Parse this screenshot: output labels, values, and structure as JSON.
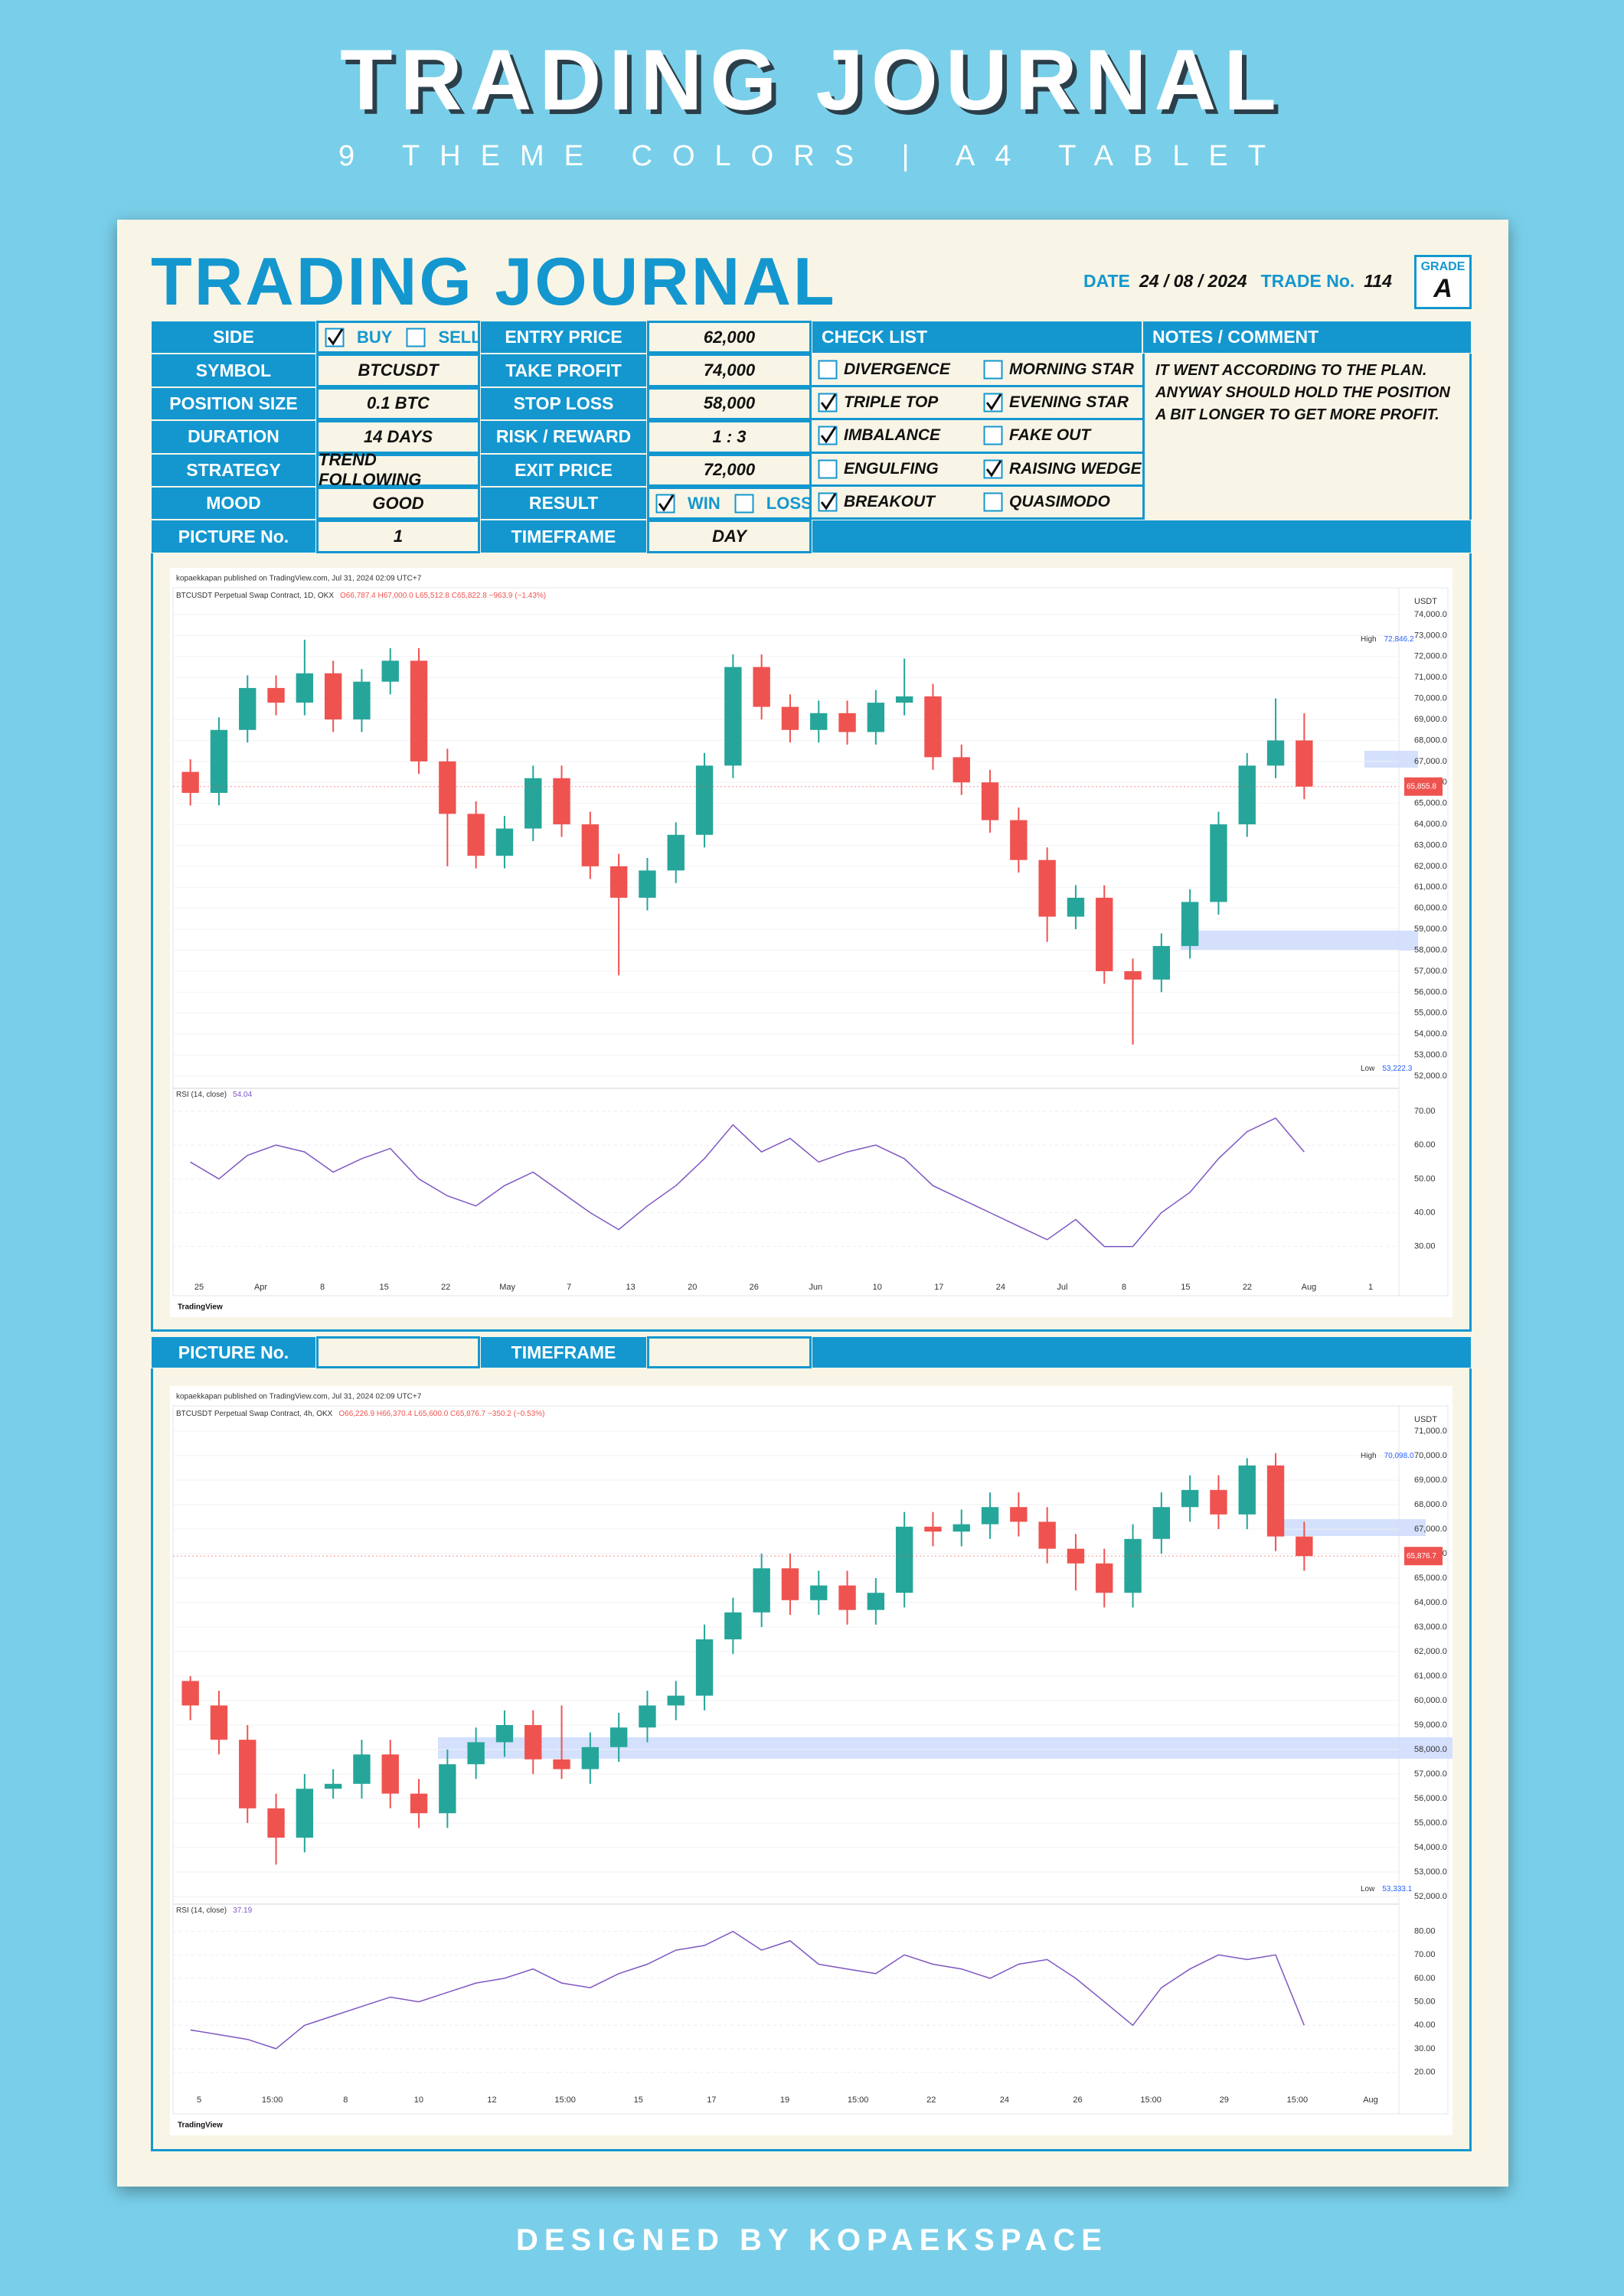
{
  "cover": {
    "title": "TRADING JOURNAL",
    "subtitle": "9 THEME COLORS | A4 TABLET",
    "footer": "DESIGNED BY KOPAEKSPACE"
  },
  "journal": {
    "title": "TRADING JOURNAL",
    "date_label": "DATE",
    "date": "24 / 08 / 2024",
    "trade_label": "TRADE No.",
    "trade_no": "114",
    "grade_label": "GRADE",
    "grade": "A",
    "left": [
      {
        "label": "SIDE",
        "options": [
          {
            "label": "BUY",
            "checked": true
          },
          {
            "label": "SELL",
            "checked": false
          }
        ]
      },
      {
        "label": "SYMBOL",
        "value": "BTCUSDT"
      },
      {
        "label": "POSITION SIZE",
        "value": "0.1 BTC"
      },
      {
        "label": "DURATION",
        "value": "14 DAYS"
      },
      {
        "label": "STRATEGY",
        "value": "TREND FOLLOWING"
      },
      {
        "label": "MOOD",
        "value": "GOOD"
      },
      {
        "label": "PICTURE No.",
        "value": "1"
      }
    ],
    "middle": [
      {
        "label": "ENTRY PRICE",
        "value": "62,000"
      },
      {
        "label": "TAKE PROFIT",
        "value": "74,000"
      },
      {
        "label": "STOP LOSS",
        "value": "58,000"
      },
      {
        "label": "RISK / REWARD",
        "value": "1 : 3"
      },
      {
        "label": "EXIT PRICE",
        "value": "72,000"
      },
      {
        "label": "RESULT",
        "options": [
          {
            "label": "WIN",
            "checked": true
          },
          {
            "label": "LOSS",
            "checked": false
          }
        ]
      },
      {
        "label": "TIMEFRAME",
        "value": "DAY"
      }
    ],
    "checklist": {
      "title": "CHECK LIST",
      "items": [
        {
          "label": "DIVERGENCE",
          "checked": false
        },
        {
          "label": "MORNING STAR",
          "checked": false
        },
        {
          "label": "TRIPLE TOP",
          "checked": true
        },
        {
          "label": "EVENING STAR",
          "checked": true
        },
        {
          "label": "IMBALANCE",
          "checked": true
        },
        {
          "label": "FAKE OUT",
          "checked": false
        },
        {
          "label": "ENGULFING",
          "checked": false
        },
        {
          "label": "RAISING WEDGE",
          "checked": true
        },
        {
          "label": "BREAKOUT",
          "checked": true
        },
        {
          "label": "QUASIMODO",
          "checked": false
        }
      ]
    },
    "notes": {
      "title": "NOTES / COMMENT",
      "text": "IT WENT ACCORDING TO THE PLAN. ANYWAY SHOULD HOLD THE POSITION A BIT LONGER TO GET MORE PROFIT."
    },
    "second": {
      "picture_label": "PICTURE No.",
      "timeframe_label": "TIMEFRAME"
    }
  },
  "charts": [
    {
      "type": "candlestick",
      "published": "kopaekkapan published on TradingView.com, Jul 31, 2024 02:09 UTC+7",
      "symbol": "BTCUSDT Perpetual Swap Contract, 1D, OKX",
      "ohlc": "O66,787.4 H67,000.0 L65,512.8 C65,822.8 −963.9 (−1.43%)",
      "unit": "USDT",
      "high_label": "High",
      "high": "72,846.2",
      "low_label": "Low",
      "low": "53,222.3",
      "last": "65,855.8",
      "footer": "TradingView",
      "ylim": [
        52000,
        74000
      ],
      "yticks": [
        {
          "value": 74000,
          "label": "74,000.0"
        },
        {
          "value": 73000,
          "label": "73,000.0"
        },
        {
          "value": 72000,
          "label": "72,000.0"
        },
        {
          "value": 71000,
          "label": "71,000.0"
        },
        {
          "value": 70000,
          "label": "70,000.0"
        },
        {
          "value": 69000,
          "label": "69,000.0"
        },
        {
          "value": 68000,
          "label": "68,000.0"
        },
        {
          "value": 67000,
          "label": "67,000.0"
        },
        {
          "value": 66000,
          "label": "66,000.0"
        },
        {
          "value": 65000,
          "label": "65,000.0"
        },
        {
          "value": 64000,
          "label": "64,000.0"
        },
        {
          "value": 63000,
          "label": "63,000.0"
        },
        {
          "value": 62000,
          "label": "62,000.0"
        },
        {
          "value": 61000,
          "label": "61,000.0"
        },
        {
          "value": 60000,
          "label": "60,000.0"
        },
        {
          "value": 59000,
          "label": "59,000.0"
        },
        {
          "value": 58000,
          "label": "58,000.0"
        },
        {
          "value": 57000,
          "label": "57,000.0"
        },
        {
          "value": 56000,
          "label": "56,000.0"
        },
        {
          "value": 55000,
          "label": "55,000.0"
        },
        {
          "value": 54000,
          "label": "54,000.0"
        },
        {
          "value": 53000,
          "label": "53,000.0"
        },
        {
          "value": 52000,
          "label": "52,000.0"
        }
      ],
      "candles": [
        [
          66500,
          67100,
          64900,
          65500
        ],
        [
          65500,
          69100,
          64900,
          68500
        ],
        [
          68500,
          71100,
          67900,
          70500
        ],
        [
          70500,
          71100,
          69200,
          69800
        ],
        [
          69800,
          72800,
          69200,
          71200
        ],
        [
          71200,
          71800,
          68400,
          69000
        ],
        [
          69000,
          71400,
          68400,
          70800
        ],
        [
          70800,
          72400,
          70200,
          71800
        ],
        [
          71800,
          72400,
          66400,
          67000
        ],
        [
          67000,
          67600,
          62000,
          64500
        ],
        [
          64500,
          65100,
          61900,
          62500
        ],
        [
          62500,
          64400,
          61900,
          63800
        ],
        [
          63800,
          66800,
          63200,
          66200
        ],
        [
          66200,
          66800,
          63400,
          64000
        ],
        [
          64000,
          64600,
          61400,
          62000
        ],
        [
          62000,
          62600,
          56800,
          60500
        ],
        [
          60500,
          62400,
          59900,
          61800
        ],
        [
          61800,
          64100,
          61200,
          63500
        ],
        [
          63500,
          67400,
          62900,
          66800
        ],
        [
          66800,
          72100,
          66200,
          71500
        ],
        [
          71500,
          72100,
          69000,
          69600
        ],
        [
          69600,
          70200,
          67900,
          68500
        ],
        [
          68500,
          69900,
          67900,
          69300
        ],
        [
          69300,
          69900,
          67800,
          68400
        ],
        [
          68400,
          70400,
          67800,
          69800
        ],
        [
          69800,
          71900,
          69200,
          70100
        ],
        [
          70100,
          70700,
          66600,
          67200
        ],
        [
          67200,
          67800,
          65400,
          66000
        ],
        [
          66000,
          66600,
          63600,
          64200
        ],
        [
          64200,
          64800,
          61700,
          62300
        ],
        [
          62300,
          62900,
          58400,
          59600
        ],
        [
          59600,
          61100,
          59000,
          60500
        ],
        [
          60500,
          61100,
          56400,
          57000
        ],
        [
          57000,
          57600,
          53500,
          56600
        ],
        [
          56600,
          58800,
          56000,
          58200
        ],
        [
          58200,
          60900,
          57600,
          60300
        ],
        [
          60300,
          64600,
          59700,
          64000
        ],
        [
          64000,
          67400,
          63400,
          66800
        ],
        [
          66800,
          70000,
          66200,
          68000
        ],
        [
          68000,
          69300,
          65200,
          65800
        ]
      ],
      "xlabels": [
        "25",
        "Apr",
        "8",
        "15",
        "22",
        "May",
        "7",
        "13",
        "20",
        "26",
        "Jun",
        "10",
        "17",
        "24",
        "Jul",
        "8",
        "15",
        "22",
        "Aug",
        "1"
      ],
      "rsi": {
        "label": "RSI (14, close)",
        "current": "54.04",
        "ylim": [
          22,
          75
        ],
        "yticks": [
          {
            "value": 70,
            "label": "70.00"
          },
          {
            "value": 60,
            "label": "60.00"
          },
          {
            "value": 50,
            "label": "50.00"
          },
          {
            "value": 40,
            "label": "40.00"
          },
          {
            "value": 30,
            "label": "30.00"
          }
        ],
        "values": [
          55,
          50,
          57,
          60,
          58,
          52,
          56,
          59,
          50,
          45,
          42,
          48,
          52,
          46,
          40,
          35,
          42,
          48,
          56,
          66,
          58,
          62,
          55,
          58,
          60,
          56,
          48,
          44,
          40,
          36,
          32,
          38,
          30,
          30,
          40,
          46,
          56,
          64,
          68,
          58
        ]
      }
    },
    {
      "type": "candlestick",
      "published": "kopaekkapan published on TradingView.com, Jul 31, 2024 02:09 UTC+7",
      "symbol": "BTCUSDT Perpetual Swap Contract, 4h, OKX",
      "ohlc": "O66,226.9 H66,370.4 L65,600.0 C65,876.7 −350.2 (−0.53%)",
      "unit": "USDT",
      "high_label": "High",
      "high": "70,098.0",
      "low_label": "Low",
      "low": "53,333.1",
      "last": "65,876.7",
      "footer": "TradingView",
      "ylim": [
        52000,
        71000
      ],
      "yticks": [
        {
          "value": 71000,
          "label": "71,000.0"
        },
        {
          "value": 70000,
          "label": "70,000.0"
        },
        {
          "value": 69000,
          "label": "69,000.0"
        },
        {
          "value": 68000,
          "label": "68,000.0"
        },
        {
          "value": 67000,
          "label": "67,000.0"
        },
        {
          "value": 66000,
          "label": "66,000.0"
        },
        {
          "value": 65000,
          "label": "65,000.0"
        },
        {
          "value": 64000,
          "label": "64,000.0"
        },
        {
          "value": 63000,
          "label": "63,000.0"
        },
        {
          "value": 62000,
          "label": "62,000.0"
        },
        {
          "value": 61000,
          "label": "61,000.0"
        },
        {
          "value": 60000,
          "label": "60,000.0"
        },
        {
          "value": 59000,
          "label": "59,000.0"
        },
        {
          "value": 58000,
          "label": "58,000.0"
        },
        {
          "value": 57000,
          "label": "57,000.0"
        },
        {
          "value": 56000,
          "label": "56,000.0"
        },
        {
          "value": 55000,
          "label": "55,000.0"
        },
        {
          "value": 54000,
          "label": "54,000.0"
        },
        {
          "value": 53000,
          "label": "53,000.0"
        },
        {
          "value": 52000,
          "label": "52,000.0"
        }
      ],
      "candles": [
        [
          60800,
          61000,
          59200,
          59800
        ],
        [
          59800,
          60400,
          57800,
          58400
        ],
        [
          58400,
          59000,
          55000,
          55600
        ],
        [
          55600,
          56200,
          53300,
          54400
        ],
        [
          54400,
          57000,
          53800,
          56400
        ],
        [
          56400,
          57200,
          56000,
          56600
        ],
        [
          56600,
          58400,
          56000,
          57800
        ],
        [
          57800,
          58400,
          55600,
          56200
        ],
        [
          56200,
          56800,
          54800,
          55400
        ],
        [
          55400,
          58000,
          54800,
          57400
        ],
        [
          57400,
          58900,
          56800,
          58300
        ],
        [
          58300,
          59600,
          57700,
          59000
        ],
        [
          59000,
          59600,
          57000,
          57600
        ],
        [
          57600,
          59800,
          56800,
          57200
        ],
        [
          57200,
          58700,
          56600,
          58100
        ],
        [
          58100,
          59500,
          57500,
          58900
        ],
        [
          58900,
          60400,
          58300,
          59800
        ],
        [
          59800,
          60800,
          59200,
          60200
        ],
        [
          60200,
          63100,
          59600,
          62500
        ],
        [
          62500,
          64200,
          61900,
          63600
        ],
        [
          63600,
          66000,
          63000,
          65400
        ],
        [
          65400,
          66000,
          63500,
          64100
        ],
        [
          64100,
          65300,
          63500,
          64700
        ],
        [
          64700,
          65300,
          63100,
          63700
        ],
        [
          63700,
          65000,
          63100,
          64400
        ],
        [
          64400,
          67700,
          63800,
          67100
        ],
        [
          67100,
          67700,
          66300,
          66900
        ],
        [
          66900,
          67800,
          66300,
          67200
        ],
        [
          67200,
          68500,
          66600,
          67900
        ],
        [
          67900,
          68500,
          66700,
          67300
        ],
        [
          67300,
          67900,
          65600,
          66200
        ],
        [
          66200,
          66800,
          64500,
          65600
        ],
        [
          65600,
          66200,
          63800,
          64400
        ],
        [
          64400,
          67200,
          63800,
          66600
        ],
        [
          66600,
          68500,
          66000,
          67900
        ],
        [
          67900,
          69200,
          67300,
          68600
        ],
        [
          68600,
          69200,
          67000,
          67600
        ],
        [
          67600,
          69900,
          67000,
          69600
        ],
        [
          69600,
          70100,
          66100,
          66700
        ],
        [
          66700,
          67300,
          65300,
          65900
        ]
      ],
      "xlabels": [
        "5",
        "15:00",
        "8",
        "10",
        "12",
        "15:00",
        "15",
        "17",
        "19",
        "15:00",
        "22",
        "24",
        "26",
        "15:00",
        "29",
        "15:00",
        "Aug"
      ],
      "rsi": {
        "label": "RSI (14, close)",
        "current": "37.19",
        "ylim": [
          14,
          89
        ],
        "yticks": [
          {
            "value": 80,
            "label": "80.00"
          },
          {
            "value": 70,
            "label": "70.00"
          },
          {
            "value": 60,
            "label": "60.00"
          },
          {
            "value": 50,
            "label": "50.00"
          },
          {
            "value": 40,
            "label": "40.00"
          },
          {
            "value": 30,
            "label": "30.00"
          },
          {
            "value": 20,
            "label": "20.00"
          }
        ],
        "values": [
          38,
          36,
          34,
          30,
          40,
          44,
          48,
          52,
          50,
          54,
          58,
          60,
          64,
          58,
          56,
          62,
          66,
          72,
          74,
          80,
          72,
          76,
          66,
          64,
          62,
          70,
          66,
          64,
          60,
          66,
          68,
          60,
          50,
          40,
          56,
          64,
          70,
          68,
          70,
          40
        ]
      }
    }
  ]
}
